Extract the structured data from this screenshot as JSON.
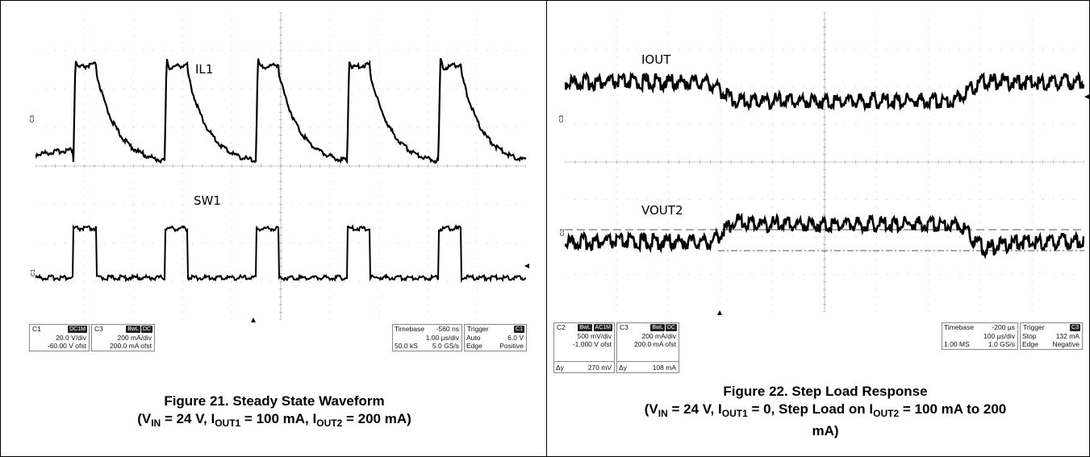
{
  "figure21": {
    "trace_labels": {
      "il1": "IL1",
      "sw1": "SW1"
    },
    "channel_markers": {
      "c3": "C3",
      "c1": "C1"
    },
    "readouts": {
      "ch1": {
        "name": "C1",
        "coupling": "DC1M",
        "scale": "20.0 V/div",
        "offset": "-60.00 V ofst"
      },
      "ch3": {
        "name": "C3",
        "bwl": "BwL",
        "coupling": "DC",
        "scale": "200 mA/div",
        "offset": "200.0 mA ofst"
      },
      "timebase": {
        "label": "Timebase",
        "value": "-560 ns",
        "rate": "1.00 µs/div",
        "samples": "50.0 kS",
        "sample_rate": "5.0 GS/s"
      },
      "trigger": {
        "label": "Trigger",
        "source": "C1",
        "mode": "Auto",
        "level": "6.0 V",
        "type": "Edge",
        "slope": "Positive"
      }
    },
    "caption": {
      "line1": "Figure 21. Steady State Waveform",
      "v": "(V",
      "v_sub": "IN",
      "v_rest": " = 24 V, I",
      "i1_sub": "OUT1",
      "i1_rest": " = 100 mA, I",
      "i2_sub": "OUT2",
      "i2_rest": " = 200 mA)"
    },
    "waveform": {
      "periods": 5,
      "period_us": 1.0,
      "switch_duty": 0.25
    }
  },
  "figure22": {
    "trace_labels": {
      "iout": "IOUT",
      "vout2": "VOUT2"
    },
    "channel_markers": {
      "c3": "C3",
      "c2": "C2"
    },
    "readouts": {
      "ch2": {
        "name": "C2",
        "bwl": "BwL",
        "coupling": "AC1M",
        "scale": "500 mV/div",
        "offset": "-1.000 V ofst",
        "dy_label": "Δy",
        "dy_value": "270 mV"
      },
      "ch3": {
        "name": "C3",
        "bwl": "BwL",
        "coupling": "DC",
        "scale": "200 mA/div",
        "offset": "200.0 mA ofst",
        "dy_label": "Δy",
        "dy_value": "108 mA"
      },
      "timebase": {
        "label": "Timebase",
        "value": "-200 µs",
        "rate": "100 µs/div",
        "samples": "1.00 MS",
        "sample_rate": "1.0 GS/s"
      },
      "trigger": {
        "label": "Trigger",
        "source": "C3",
        "mode": "Stop",
        "level": "132 mA",
        "type": "Edge",
        "slope": "Negative"
      }
    },
    "caption": {
      "line1": "Figure 22. Step Load Response",
      "v": "(V",
      "v_sub": "IN",
      "v_rest": " = 24 V, I",
      "i1_sub": "OUT1",
      "i1_rest": " = 0, Step Load on I",
      "i2_sub": "OUT2",
      "i2_rest": " = 100 mA to 200",
      "line3": "mA)"
    }
  },
  "colors": {
    "trace": "#000000",
    "grid": "#c8c8c8",
    "dash": "#555555",
    "readout_tag": "#222222"
  }
}
